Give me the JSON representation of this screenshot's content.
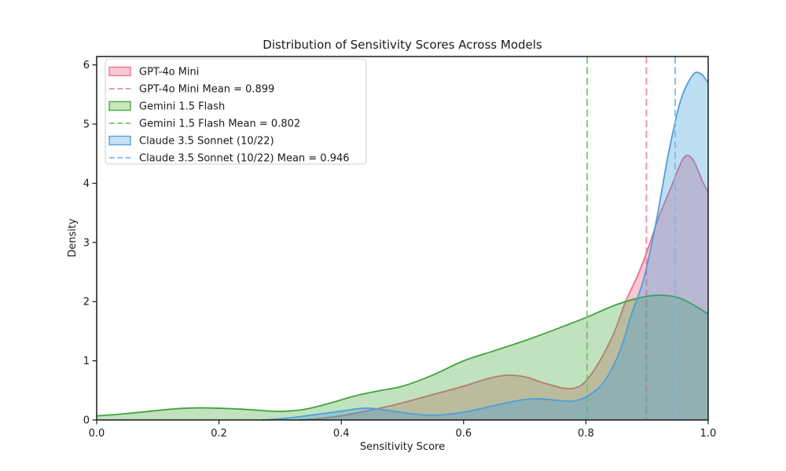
{
  "chart_data": {
    "type": "area",
    "subtype": "kde-density",
    "title": "Distribution of Sensitivity Scores Across Models",
    "xlabel": "Sensitivity Score",
    "ylabel": "Density",
    "xlim": [
      0.0,
      1.0
    ],
    "ylim": [
      0.0,
      6.14
    ],
    "grid": false,
    "legend_position": "upper-left",
    "xticks": {
      "values": [
        0.0,
        0.2,
        0.4,
        0.6,
        0.8,
        1.0
      ],
      "labels": [
        "0.0",
        "0.2",
        "0.4",
        "0.6",
        "0.8",
        "1.0"
      ]
    },
    "yticks": {
      "values": [
        0,
        1,
        2,
        3,
        4,
        5,
        6
      ],
      "labels": [
        "0",
        "1",
        "2",
        "3",
        "4",
        "5",
        "6"
      ]
    },
    "series": [
      {
        "name": "GPT-4o Mini",
        "mean": 0.899,
        "mean_label": "GPT-4o Mini Mean = 0.899",
        "line_color": "#e8718c",
        "fill_color": "rgba(220,20,60,0.24)",
        "mean_color": "rgba(236,115,140,0.75)",
        "swatch_fill": "#f8c8d3",
        "points": [
          [
            0.33,
            0.0
          ],
          [
            0.37,
            0.03
          ],
          [
            0.41,
            0.09
          ],
          [
            0.45,
            0.17
          ],
          [
            0.5,
            0.29
          ],
          [
            0.55,
            0.43
          ],
          [
            0.6,
            0.57
          ],
          [
            0.64,
            0.7
          ],
          [
            0.67,
            0.755
          ],
          [
            0.7,
            0.73
          ],
          [
            0.73,
            0.63
          ],
          [
            0.765,
            0.535
          ],
          [
            0.785,
            0.55
          ],
          [
            0.8,
            0.66
          ],
          [
            0.82,
            0.95
          ],
          [
            0.845,
            1.45
          ],
          [
            0.865,
            2.0
          ],
          [
            0.885,
            2.45
          ],
          [
            0.9,
            2.85
          ],
          [
            0.92,
            3.45
          ],
          [
            0.94,
            3.95
          ],
          [
            0.96,
            4.43
          ],
          [
            0.975,
            4.4
          ],
          [
            0.99,
            4.05
          ],
          [
            1.0,
            3.85
          ]
        ]
      },
      {
        "name": "Gemini 1.5 Flash",
        "mean": 0.802,
        "mean_label": "Gemini 1.5 Flash Mean = 0.802",
        "line_color": "#43a33c",
        "fill_color": "rgba(50,160,44,0.30)",
        "mean_color": "rgba(110,195,100,0.85)",
        "swatch_fill": "#c8e6ba",
        "points": [
          [
            0.0,
            0.07
          ],
          [
            0.04,
            0.1
          ],
          [
            0.08,
            0.14
          ],
          [
            0.13,
            0.19
          ],
          [
            0.17,
            0.205
          ],
          [
            0.21,
            0.195
          ],
          [
            0.25,
            0.175
          ],
          [
            0.3,
            0.145
          ],
          [
            0.34,
            0.18
          ],
          [
            0.38,
            0.28
          ],
          [
            0.42,
            0.4
          ],
          [
            0.46,
            0.49
          ],
          [
            0.5,
            0.57
          ],
          [
            0.55,
            0.76
          ],
          [
            0.6,
            1.0
          ],
          [
            0.65,
            1.17
          ],
          [
            0.7,
            1.34
          ],
          [
            0.75,
            1.53
          ],
          [
            0.8,
            1.73
          ],
          [
            0.85,
            1.95
          ],
          [
            0.89,
            2.07
          ],
          [
            0.92,
            2.11
          ],
          [
            0.95,
            2.07
          ],
          [
            0.975,
            1.95
          ],
          [
            1.0,
            1.79
          ]
        ]
      },
      {
        "name": "Claude 3.5 Sonnet (10/22)",
        "mean": 0.946,
        "mean_label": "Claude 3.5 Sonnet (10/22) Mean = 0.946",
        "line_color": "#4d9fdb",
        "fill_color": "rgba(52,152,219,0.32)",
        "mean_color": "rgba(125,185,235,0.9)",
        "swatch_fill": "#c4e1f6",
        "points": [
          [
            0.27,
            0.0
          ],
          [
            0.31,
            0.03
          ],
          [
            0.35,
            0.08
          ],
          [
            0.4,
            0.15
          ],
          [
            0.44,
            0.2
          ],
          [
            0.48,
            0.155
          ],
          [
            0.52,
            0.1
          ],
          [
            0.555,
            0.08
          ],
          [
            0.6,
            0.13
          ],
          [
            0.64,
            0.22
          ],
          [
            0.68,
            0.31
          ],
          [
            0.715,
            0.36
          ],
          [
            0.75,
            0.335
          ],
          [
            0.78,
            0.32
          ],
          [
            0.805,
            0.42
          ],
          [
            0.83,
            0.65
          ],
          [
            0.855,
            1.15
          ],
          [
            0.875,
            1.8
          ],
          [
            0.895,
            2.4
          ],
          [
            0.915,
            3.35
          ],
          [
            0.935,
            4.5
          ],
          [
            0.955,
            5.4
          ],
          [
            0.975,
            5.83
          ],
          [
            0.988,
            5.85
          ],
          [
            1.0,
            5.7
          ]
        ]
      }
    ],
    "legend": {
      "items": [
        {
          "swatch": "patch",
          "series": 0,
          "label": "GPT-4o Mini"
        },
        {
          "swatch": "dash",
          "series": 0,
          "label": "GPT-4o Mini Mean = 0.899"
        },
        {
          "swatch": "patch",
          "series": 1,
          "label": "Gemini 1.5 Flash"
        },
        {
          "swatch": "dash",
          "series": 1,
          "label": "Gemini 1.5 Flash Mean = 0.802"
        },
        {
          "swatch": "patch",
          "series": 2,
          "label": "Claude 3.5 Sonnet (10/22)"
        },
        {
          "swatch": "dash",
          "series": 2,
          "label": "Claude 3.5 Sonnet (10/22) Mean = 0.946"
        }
      ]
    },
    "colors": {
      "spine": "#1a1a1a",
      "text": "#1a1a1a",
      "legend_border": "#cccccc",
      "legend_bg": "rgba(255,255,255,0.85)"
    }
  }
}
